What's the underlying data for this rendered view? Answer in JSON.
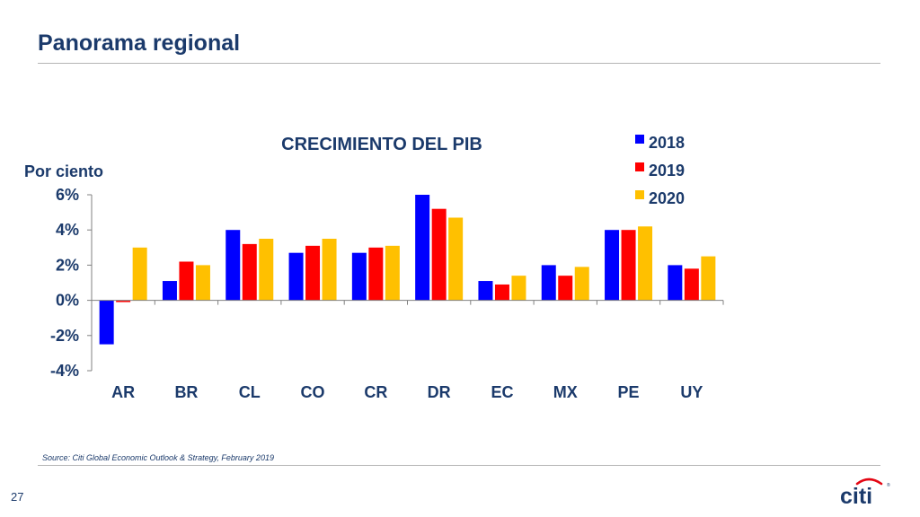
{
  "slide": {
    "title": "Panorama regional",
    "source": "Source: Citi Global Economic Outlook & Strategy, February 2019",
    "page_number": "27",
    "logo_text": "citi"
  },
  "chart_data": {
    "type": "bar",
    "title": "CRECIMIENTO DEL PIB",
    "ylabel": "Por ciento",
    "categories": [
      "AR",
      "BR",
      "CL",
      "CO",
      "CR",
      "DR",
      "EC",
      "MX",
      "PE",
      "UY"
    ],
    "series": [
      {
        "name": "2018",
        "color": "#0000ff",
        "values": [
          -2.5,
          1.1,
          4.0,
          2.7,
          2.7,
          6.0,
          1.1,
          2.0,
          4.0,
          2.0
        ]
      },
      {
        "name": "2019",
        "color": "#ff0000",
        "values": [
          -0.1,
          2.2,
          3.2,
          3.1,
          3.0,
          5.2,
          0.9,
          1.4,
          4.0,
          1.8
        ]
      },
      {
        "name": "2020",
        "color": "#ffc000",
        "values": [
          3.0,
          2.0,
          3.5,
          3.5,
          3.1,
          4.7,
          1.4,
          1.9,
          4.2,
          2.5
        ]
      }
    ],
    "ylim": [
      -4,
      6
    ],
    "yticks": [
      "6%",
      "4%",
      "2%",
      "0%",
      "-2%",
      "-4%"
    ],
    "ytick_values": [
      6,
      4,
      2,
      0,
      -2,
      -4
    ],
    "grid": false,
    "legend": "top-right"
  }
}
